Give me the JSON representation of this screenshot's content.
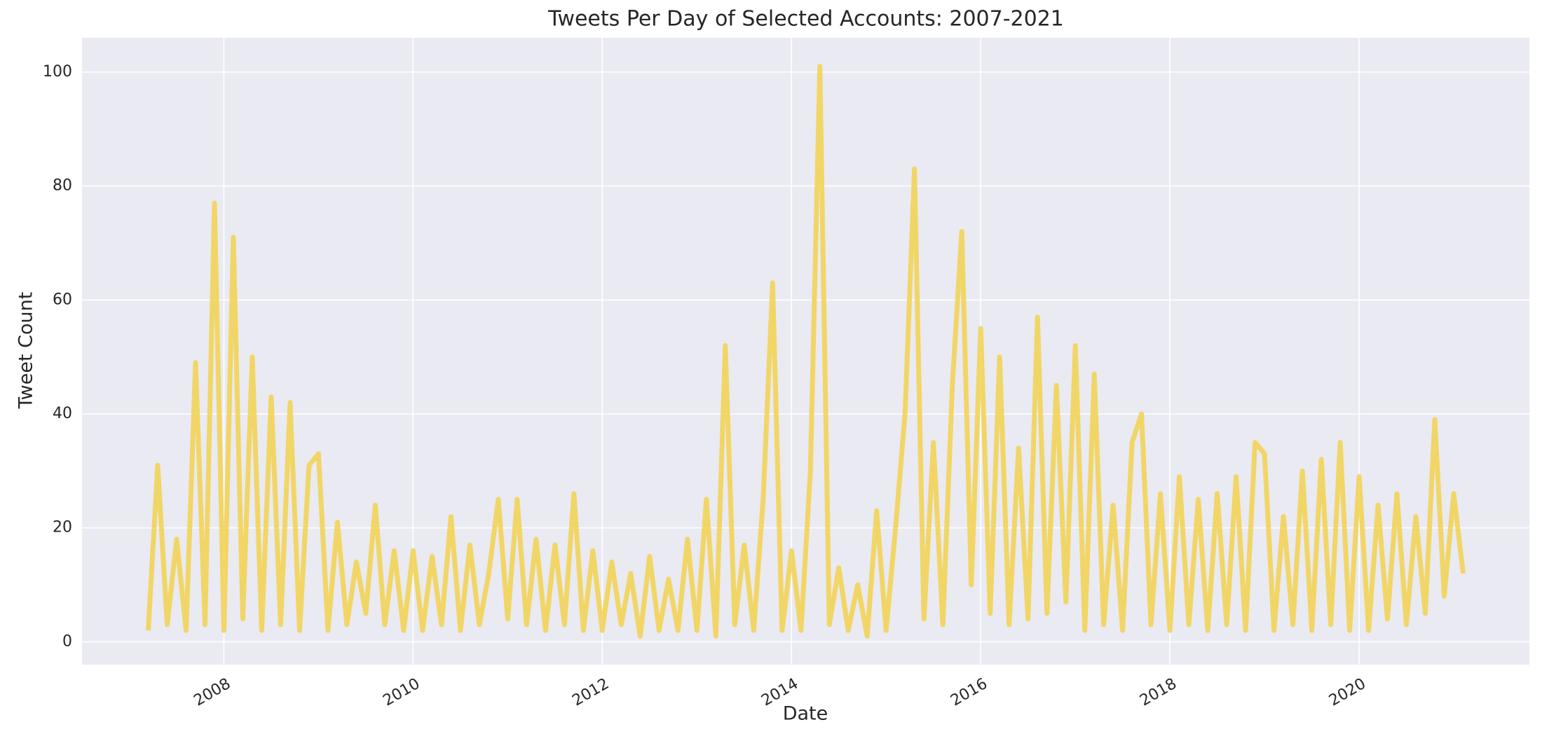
{
  "chart_data": {
    "type": "line",
    "title": "Tweets Per Day of Selected Accounts: 2007-2021",
    "xlabel": "Date",
    "ylabel": "Tweet Count",
    "x": [
      2007.2,
      2007.3,
      2007.4,
      2007.5,
      2007.6,
      2007.7,
      2007.8,
      2007.9,
      2008.0,
      2008.1,
      2008.2,
      2008.3,
      2008.4,
      2008.5,
      2008.6,
      2008.7,
      2008.8,
      2008.9,
      2009.0,
      2009.1,
      2009.2,
      2009.3,
      2009.4,
      2009.5,
      2009.6,
      2009.7,
      2009.8,
      2009.9,
      2010.0,
      2010.1,
      2010.2,
      2010.3,
      2010.4,
      2010.5,
      2010.6,
      2010.7,
      2010.8,
      2010.9,
      2011.0,
      2011.1,
      2011.2,
      2011.3,
      2011.4,
      2011.5,
      2011.6,
      2011.7,
      2011.8,
      2011.9,
      2012.0,
      2012.1,
      2012.2,
      2012.3,
      2012.4,
      2012.5,
      2012.6,
      2012.7,
      2012.8,
      2012.9,
      2013.0,
      2013.1,
      2013.2,
      2013.3,
      2013.4,
      2013.5,
      2013.6,
      2013.7,
      2013.8,
      2013.9,
      2014.0,
      2014.1,
      2014.2,
      2014.3,
      2014.4,
      2014.5,
      2014.6,
      2014.7,
      2014.8,
      2014.9,
      2015.0,
      2015.1,
      2015.2,
      2015.3,
      2015.4,
      2015.5,
      2015.6,
      2015.7,
      2015.8,
      2015.9,
      2016.0,
      2016.1,
      2016.2,
      2016.3,
      2016.4,
      2016.5,
      2016.6,
      2016.7,
      2016.8,
      2016.9,
      2017.0,
      2017.1,
      2017.2,
      2017.3,
      2017.4,
      2017.5,
      2017.6,
      2017.7,
      2017.8,
      2017.9,
      2018.0,
      2018.1,
      2018.2,
      2018.3,
      2018.4,
      2018.5,
      2018.6,
      2018.7,
      2018.8,
      2018.9,
      2019.0,
      2019.1,
      2019.2,
      2019.3,
      2019.4,
      2019.5,
      2019.6,
      2019.7,
      2019.8,
      2019.9,
      2020.0,
      2020.1,
      2020.2,
      2020.3,
      2020.4,
      2020.5,
      2020.6,
      2020.7,
      2020.8,
      2020.9,
      2021.0,
      2021.1
    ],
    "values": [
      2,
      31,
      3,
      18,
      2,
      49,
      3,
      77,
      2,
      71,
      4,
      50,
      2,
      43,
      3,
      42,
      2,
      31,
      33,
      2,
      21,
      3,
      14,
      5,
      24,
      3,
      16,
      2,
      16,
      2,
      15,
      3,
      22,
      2,
      17,
      3,
      12,
      25,
      4,
      25,
      3,
      18,
      2,
      17,
      3,
      26,
      2,
      16,
      2,
      14,
      3,
      12,
      1,
      15,
      2,
      11,
      2,
      18,
      2,
      25,
      1,
      52,
      3,
      17,
      2,
      25,
      63,
      2,
      16,
      2,
      30,
      101,
      3,
      13,
      2,
      10,
      1,
      23,
      2,
      20,
      40,
      83,
      4,
      35,
      3,
      45,
      72,
      10,
      55,
      5,
      50,
      3,
      34,
      4,
      57,
      5,
      45,
      7,
      52,
      2,
      47,
      3,
      24,
      2,
      35,
      40,
      3,
      26,
      2,
      29,
      3,
      25,
      2,
      26,
      3,
      29,
      2,
      35,
      33,
      2,
      22,
      3,
      30,
      2,
      32,
      3,
      35,
      2,
      29,
      2,
      24,
      4,
      26,
      3,
      22,
      5,
      39,
      8,
      26,
      12
    ],
    "color": "#f2d24f",
    "xlim": [
      2006.5,
      2021.8
    ],
    "xticks": [
      2008,
      2010,
      2012,
      2014,
      2016,
      2018,
      2020
    ],
    "ylim": [
      -4,
      106
    ],
    "yticks": [
      0,
      20,
      40,
      60,
      80,
      100
    ],
    "grid": true
  }
}
